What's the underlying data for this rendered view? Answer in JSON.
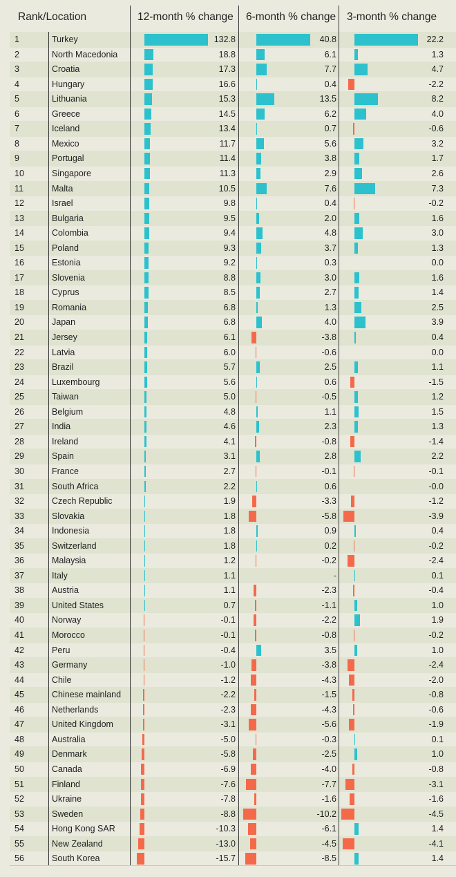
{
  "header": {
    "rank_location": "Rank/Location",
    "col1": "12-month % change",
    "col2": "6-month % change",
    "col3": "3-month % change"
  },
  "colors": {
    "positive": "#2cc1cc",
    "negative": "#f4694a",
    "background": "#ebeadf",
    "stripe": "#dfe3d0"
  },
  "chart_data": {
    "type": "table",
    "columns": [
      "Rank",
      "Location",
      "12-month % change",
      "6-month % change",
      "3-month % change"
    ],
    "rows": [
      {
        "rank": "1",
        "location": "Turkey",
        "m12": "132.8",
        "m6": "40.8",
        "m3": "22.2"
      },
      {
        "rank": "2",
        "location": "North Macedonia",
        "m12": "18.8",
        "m6": "6.1",
        "m3": "1.3"
      },
      {
        "rank": "3",
        "location": "Croatia",
        "m12": "17.3",
        "m6": "7.7",
        "m3": "4.7"
      },
      {
        "rank": "4",
        "location": "Hungary",
        "m12": "16.6",
        "m6": "0.4",
        "m3": "-2.2"
      },
      {
        "rank": "5",
        "location": "Lithuania",
        "m12": "15.3",
        "m6": "13.5",
        "m3": "8.2"
      },
      {
        "rank": "6",
        "location": "Greece",
        "m12": "14.5",
        "m6": "6.2",
        "m3": "4.0"
      },
      {
        "rank": "7",
        "location": "Iceland",
        "m12": "13.4",
        "m6": "0.7",
        "m3": "-0.6"
      },
      {
        "rank": "8",
        "location": "Mexico",
        "m12": "11.7",
        "m6": "5.6",
        "m3": "3.2"
      },
      {
        "rank": "9",
        "location": "Portugal",
        "m12": "11.4",
        "m6": "3.8",
        "m3": "1.7"
      },
      {
        "rank": "10",
        "location": "Singapore",
        "m12": "11.3",
        "m6": "2.9",
        "m3": "2.6"
      },
      {
        "rank": "11",
        "location": "Malta",
        "m12": "10.5",
        "m6": "7.6",
        "m3": "7.3"
      },
      {
        "rank": "12",
        "location": "Israel",
        "m12": "9.8",
        "m6": "0.4",
        "m3": "-0.2"
      },
      {
        "rank": "13",
        "location": "Bulgaria",
        "m12": "9.5",
        "m6": "2.0",
        "m3": "1.6"
      },
      {
        "rank": "14",
        "location": "Colombia",
        "m12": "9.4",
        "m6": "4.8",
        "m3": "3.0"
      },
      {
        "rank": "15",
        "location": "Poland",
        "m12": "9.3",
        "m6": "3.7",
        "m3": "1.3"
      },
      {
        "rank": "16",
        "location": "Estonia",
        "m12": "9.2",
        "m6": "0.3",
        "m3": "0.0"
      },
      {
        "rank": "17",
        "location": "Slovenia",
        "m12": "8.8",
        "m6": "3.0",
        "m3": "1.6"
      },
      {
        "rank": "18",
        "location": "Cyprus",
        "m12": "8.5",
        "m6": "2.7",
        "m3": "1.4"
      },
      {
        "rank": "19",
        "location": "Romania",
        "m12": "6.8",
        "m6": "1.3",
        "m3": "2.5"
      },
      {
        "rank": "20",
        "location": "Japan",
        "m12": "6.8",
        "m6": "4.0",
        "m3": "3.9"
      },
      {
        "rank": "21",
        "location": "Jersey",
        "m12": "6.1",
        "m6": "-3.8",
        "m3": "0.4"
      },
      {
        "rank": "22",
        "location": "Latvia",
        "m12": "6.0",
        "m6": "-0.6",
        "m3": "0.0"
      },
      {
        "rank": "23",
        "location": "Brazil",
        "m12": "5.7",
        "m6": "2.5",
        "m3": "1.1"
      },
      {
        "rank": "24",
        "location": "Luxembourg",
        "m12": "5.6",
        "m6": "0.6",
        "m3": "-1.5"
      },
      {
        "rank": "25",
        "location": "Taiwan",
        "m12": "5.0",
        "m6": "-0.5",
        "m3": "1.2"
      },
      {
        "rank": "26",
        "location": "Belgium",
        "m12": "4.8",
        "m6": "1.1",
        "m3": "1.5"
      },
      {
        "rank": "27",
        "location": "India",
        "m12": "4.6",
        "m6": "2.3",
        "m3": "1.3"
      },
      {
        "rank": "28",
        "location": "Ireland",
        "m12": "4.1",
        "m6": "-0.8",
        "m3": "-1.4"
      },
      {
        "rank": "29",
        "location": "Spain",
        "m12": "3.1",
        "m6": "2.8",
        "m3": "2.2"
      },
      {
        "rank": "30",
        "location": "France",
        "m12": "2.7",
        "m6": "-0.1",
        "m3": "-0.1"
      },
      {
        "rank": "31",
        "location": "South Africa",
        "m12": "2.2",
        "m6": "0.6",
        "m3": "-0.0"
      },
      {
        "rank": "32",
        "location": "Czech Republic",
        "m12": "1.9",
        "m6": "-3.3",
        "m3": "-1.2"
      },
      {
        "rank": "33",
        "location": "Slovakia",
        "m12": "1.8",
        "m6": "-5.8",
        "m3": "-3.9"
      },
      {
        "rank": "34",
        "location": "Indonesia",
        "m12": "1.8",
        "m6": "0.9",
        "m3": "0.4"
      },
      {
        "rank": "35",
        "location": "Switzerland",
        "m12": "1.8",
        "m6": "0.2",
        "m3": "-0.2"
      },
      {
        "rank": "36",
        "location": "Malaysia",
        "m12": "1.2",
        "m6": "-0.2",
        "m3": "-2.4"
      },
      {
        "rank": "37",
        "location": "Italy",
        "m12": "1.1",
        "m6": "-",
        "m3": "0.1"
      },
      {
        "rank": "38",
        "location": "Austria",
        "m12": "1.1",
        "m6": "-2.3",
        "m3": "-0.4"
      },
      {
        "rank": "39",
        "location": "United States",
        "m12": "0.7",
        "m6": "-1.1",
        "m3": "1.0"
      },
      {
        "rank": "40",
        "location": "Norway",
        "m12": "-0.1",
        "m6": "-2.2",
        "m3": "1.9"
      },
      {
        "rank": "41",
        "location": "Morocco",
        "m12": "-0.1",
        "m6": "-0.8",
        "m3": "-0.2"
      },
      {
        "rank": "42",
        "location": "Peru",
        "m12": "-0.4",
        "m6": "3.5",
        "m3": "1.0"
      },
      {
        "rank": "43",
        "location": "Germany",
        "m12": "-1.0",
        "m6": "-3.8",
        "m3": "-2.4"
      },
      {
        "rank": "44",
        "location": "Chile",
        "m12": "-1.2",
        "m6": "-4.3",
        "m3": "-2.0"
      },
      {
        "rank": "45",
        "location": "Chinese mainland",
        "m12": "-2.2",
        "m6": "-1.5",
        "m3": "-0.8"
      },
      {
        "rank": "46",
        "location": "Netherlands",
        "m12": "-2.3",
        "m6": "-4.3",
        "m3": "-0.6"
      },
      {
        "rank": "47",
        "location": "United Kingdom",
        "m12": "-3.1",
        "m6": "-5.6",
        "m3": "-1.9"
      },
      {
        "rank": "48",
        "location": "Australia",
        "m12": "-5.0",
        "m6": "-0.3",
        "m3": "0.1"
      },
      {
        "rank": "49",
        "location": "Denmark",
        "m12": "-5.8",
        "m6": "-2.5",
        "m3": "1.0"
      },
      {
        "rank": "50",
        "location": "Canada",
        "m12": "-6.9",
        "m6": "-4.0",
        "m3": "-0.8"
      },
      {
        "rank": "51",
        "location": "Finland",
        "m12": "-7.6",
        "m6": "-7.7",
        "m3": "-3.1"
      },
      {
        "rank": "52",
        "location": "Ukraine",
        "m12": "-7.8",
        "m6": "-1.6",
        "m3": "-1.6"
      },
      {
        "rank": "53",
        "location": "Sweden",
        "m12": "-8.8",
        "m6": "-10.2",
        "m3": "-4.5"
      },
      {
        "rank": "54",
        "location": "Hong Kong SAR",
        "m12": "-10.3",
        "m6": "-6.1",
        "m3": "1.4"
      },
      {
        "rank": "55",
        "location": "New Zealand",
        "m12": "-13.0",
        "m6": "-4.5",
        "m3": "-4.1"
      },
      {
        "rank": "56",
        "location": "South Korea",
        "m12": "-15.7",
        "m6": "-8.5",
        "m3": "1.4"
      }
    ]
  }
}
